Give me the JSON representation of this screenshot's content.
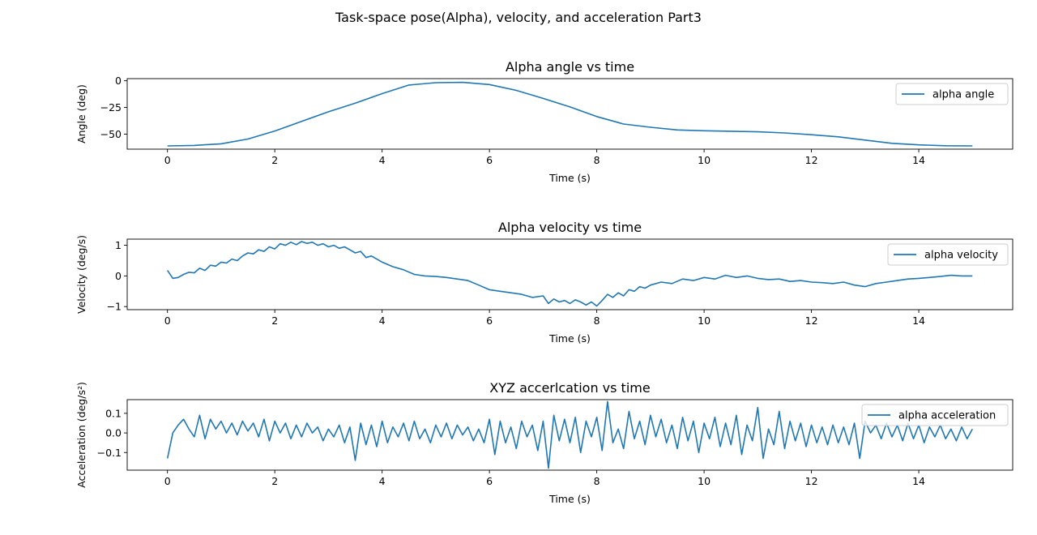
{
  "figure": {
    "title": "Task-space pose(Alpha), velocity, and acceleration Part3"
  },
  "chart_data": [
    {
      "type": "line",
      "title": "Alpha angle vs time",
      "xlabel": "Time (s)",
      "ylabel": "Angle (deg)",
      "xlim": [
        -0.75,
        15.75
      ],
      "ylim": [
        -64,
        2
      ],
      "xticks": [
        0,
        2,
        4,
        6,
        8,
        10,
        12,
        14
      ],
      "xtick_labels": [
        "0",
        "2",
        "4",
        "6",
        "8",
        "10",
        "12",
        "14"
      ],
      "yticks": [
        0,
        -25,
        -50
      ],
      "ytick_labels": [
        "0",
        "−25",
        "−50"
      ],
      "legend": "top-right",
      "grid": false,
      "series": [
        {
          "name": "alpha angle",
          "color": "#1f77b4",
          "x": [
            0,
            0.5,
            1,
            1.5,
            2,
            2.5,
            3,
            3.5,
            4,
            4.5,
            5,
            5.5,
            6,
            6.5,
            7,
            7.5,
            8,
            8.5,
            9,
            9.5,
            10,
            10.5,
            11,
            11.5,
            12,
            12.5,
            13,
            13.5,
            14,
            14.5,
            15
          ],
          "y": [
            -61,
            -60.5,
            -59,
            -54.5,
            -47,
            -38,
            -29,
            -21,
            -12,
            -4,
            -1.8,
            -1.5,
            -3.5,
            -9,
            -16.5,
            -24.5,
            -33.5,
            -40.5,
            -43.5,
            -46,
            -46.8,
            -47.2,
            -47.8,
            -48.8,
            -50.5,
            -52.5,
            -55.5,
            -58.5,
            -60,
            -60.8,
            -61
          ]
        }
      ]
    },
    {
      "type": "line",
      "title": "Alpha velocity vs time",
      "xlabel": "Time (s)",
      "ylabel": "Velocity (deg/s)",
      "xlim": [
        -0.75,
        15.75
      ],
      "ylim": [
        -1.1,
        1.2
      ],
      "xticks": [
        0,
        2,
        4,
        6,
        8,
        10,
        12,
        14
      ],
      "xtick_labels": [
        "0",
        "2",
        "4",
        "6",
        "8",
        "10",
        "12",
        "14"
      ],
      "yticks": [
        1,
        0,
        -1
      ],
      "ytick_labels": [
        "1",
        "0",
        "−1"
      ],
      "legend": "top-right",
      "grid": false,
      "series": [
        {
          "name": "alpha velocity",
          "color": "#1f77b4",
          "x": [
            0,
            0.1,
            0.2,
            0.3,
            0.4,
            0.5,
            0.6,
            0.7,
            0.8,
            0.9,
            1.0,
            1.1,
            1.2,
            1.3,
            1.4,
            1.5,
            1.6,
            1.7,
            1.8,
            1.9,
            2.0,
            2.1,
            2.2,
            2.3,
            2.4,
            2.5,
            2.6,
            2.7,
            2.8,
            2.9,
            3.0,
            3.1,
            3.2,
            3.3,
            3.4,
            3.5,
            3.6,
            3.7,
            3.8,
            3.9,
            4.0,
            4.2,
            4.4,
            4.6,
            4.8,
            5.0,
            5.2,
            5.4,
            5.6,
            5.8,
            6.0,
            6.2,
            6.4,
            6.6,
            6.8,
            7.0,
            7.1,
            7.2,
            7.3,
            7.4,
            7.5,
            7.6,
            7.7,
            7.8,
            7.9,
            8.0,
            8.1,
            8.2,
            8.3,
            8.4,
            8.5,
            8.6,
            8.7,
            8.8,
            8.9,
            9.0,
            9.2,
            9.4,
            9.6,
            9.8,
            10.0,
            10.2,
            10.4,
            10.6,
            10.8,
            11.0,
            11.2,
            11.4,
            11.6,
            11.8,
            12.0,
            12.2,
            12.4,
            12.6,
            12.8,
            13.0,
            13.2,
            13.4,
            13.6,
            13.8,
            14.0,
            14.2,
            14.4,
            14.6,
            14.8,
            15.0
          ],
          "y": [
            0.18,
            -0.08,
            -0.05,
            0.05,
            0.12,
            0.1,
            0.25,
            0.18,
            0.35,
            0.32,
            0.45,
            0.42,
            0.55,
            0.5,
            0.65,
            0.75,
            0.72,
            0.85,
            0.8,
            0.95,
            0.88,
            1.05,
            1.0,
            1.1,
            1.02,
            1.12,
            1.06,
            1.1,
            1.0,
            1.05,
            0.95,
            1.0,
            0.9,
            0.95,
            0.85,
            0.75,
            0.8,
            0.6,
            0.65,
            0.55,
            0.45,
            0.3,
            0.2,
            0.05,
            0.0,
            -0.02,
            -0.05,
            -0.1,
            -0.15,
            -0.3,
            -0.45,
            -0.5,
            -0.55,
            -0.6,
            -0.7,
            -0.65,
            -0.9,
            -0.75,
            -0.85,
            -0.8,
            -0.9,
            -0.78,
            -0.85,
            -0.95,
            -0.85,
            -0.98,
            -0.8,
            -0.6,
            -0.7,
            -0.55,
            -0.65,
            -0.45,
            -0.5,
            -0.35,
            -0.4,
            -0.3,
            -0.2,
            -0.25,
            -0.1,
            -0.15,
            -0.05,
            -0.1,
            0.02,
            -0.05,
            0.0,
            -0.08,
            -0.12,
            -0.1,
            -0.18,
            -0.15,
            -0.2,
            -0.22,
            -0.25,
            -0.2,
            -0.3,
            -0.35,
            -0.25,
            -0.2,
            -0.15,
            -0.1,
            -0.08,
            -0.05,
            -0.02,
            0.02,
            0.0,
            0.0
          ]
        }
      ]
    },
    {
      "type": "line",
      "title": "XYZ accerlcation vs time",
      "xlabel": "Time (s)",
      "ylabel": "Acceleration (deg/s²)",
      "xlim": [
        -0.75,
        15.75
      ],
      "ylim": [
        -0.19,
        0.17
      ],
      "xticks": [
        0,
        2,
        4,
        6,
        8,
        10,
        12,
        14
      ],
      "xtick_labels": [
        "0",
        "2",
        "4",
        "6",
        "8",
        "10",
        "12",
        "14"
      ],
      "yticks": [
        0.1,
        0.0,
        -0.1
      ],
      "ytick_labels": [
        "0.1",
        "0.0",
        "−0.1"
      ],
      "legend": "top-right",
      "grid": false,
      "series": [
        {
          "name": "alpha acceleration",
          "color": "#1f77b4",
          "x": [
            0,
            0.1,
            0.2,
            0.3,
            0.4,
            0.5,
            0.6,
            0.7,
            0.8,
            0.9,
            1.0,
            1.1,
            1.2,
            1.3,
            1.4,
            1.5,
            1.6,
            1.7,
            1.8,
            1.9,
            2.0,
            2.1,
            2.2,
            2.3,
            2.4,
            2.5,
            2.6,
            2.7,
            2.8,
            2.9,
            3.0,
            3.1,
            3.2,
            3.3,
            3.4,
            3.5,
            3.6,
            3.7,
            3.8,
            3.9,
            4.0,
            4.1,
            4.2,
            4.3,
            4.4,
            4.5,
            4.6,
            4.7,
            4.8,
            4.9,
            5.0,
            5.1,
            5.2,
            5.3,
            5.4,
            5.5,
            5.6,
            5.7,
            5.8,
            5.9,
            6.0,
            6.1,
            6.2,
            6.3,
            6.4,
            6.5,
            6.6,
            6.7,
            6.8,
            6.9,
            7.0,
            7.1,
            7.2,
            7.3,
            7.4,
            7.5,
            7.6,
            7.7,
            7.8,
            7.9,
            8.0,
            8.1,
            8.2,
            8.3,
            8.4,
            8.5,
            8.6,
            8.7,
            8.8,
            8.9,
            9.0,
            9.1,
            9.2,
            9.3,
            9.4,
            9.5,
            9.6,
            9.7,
            9.8,
            9.9,
            10.0,
            10.1,
            10.2,
            10.3,
            10.4,
            10.5,
            10.6,
            10.7,
            10.8,
            10.9,
            11.0,
            11.1,
            11.2,
            11.3,
            11.4,
            11.5,
            11.6,
            11.7,
            11.8,
            11.9,
            12.0,
            12.1,
            12.2,
            12.3,
            12.4,
            12.5,
            12.6,
            12.7,
            12.8,
            12.9,
            13.0,
            13.1,
            13.2,
            13.3,
            13.4,
            13.5,
            13.6,
            13.7,
            13.8,
            13.9,
            14.0,
            14.1,
            14.2,
            14.3,
            14.4,
            14.5,
            14.6,
            14.7,
            14.8,
            14.9,
            15.0
          ],
          "y": [
            -0.13,
            0.0,
            0.04,
            0.07,
            0.02,
            -0.02,
            0.09,
            -0.03,
            0.07,
            0.02,
            0.06,
            0.0,
            0.05,
            -0.01,
            0.06,
            0.01,
            0.05,
            -0.02,
            0.07,
            -0.04,
            0.06,
            0.0,
            0.05,
            -0.03,
            0.04,
            -0.02,
            0.05,
            0.0,
            0.03,
            -0.04,
            0.02,
            -0.02,
            0.04,
            -0.05,
            0.03,
            -0.14,
            0.05,
            -0.06,
            0.04,
            -0.07,
            0.06,
            -0.05,
            0.03,
            -0.02,
            0.05,
            -0.04,
            0.06,
            -0.03,
            0.02,
            -0.05,
            0.04,
            -0.02,
            0.05,
            -0.03,
            0.04,
            -0.01,
            0.03,
            -0.04,
            0.02,
            -0.05,
            0.07,
            -0.11,
            0.06,
            -0.05,
            0.03,
            -0.08,
            0.06,
            -0.02,
            0.04,
            -0.09,
            0.06,
            -0.18,
            0.09,
            -0.04,
            0.07,
            -0.05,
            0.08,
            -0.1,
            0.06,
            -0.02,
            0.08,
            -0.09,
            0.16,
            -0.05,
            0.02,
            -0.08,
            0.11,
            -0.03,
            0.06,
            -0.06,
            0.09,
            -0.02,
            0.07,
            -0.05,
            0.04,
            -0.08,
            0.08,
            -0.04,
            0.06,
            -0.1,
            0.05,
            -0.03,
            0.08,
            -0.07,
            0.05,
            -0.06,
            0.09,
            -0.11,
            0.04,
            -0.04,
            0.13,
            -0.13,
            0.02,
            -0.06,
            0.11,
            -0.08,
            0.06,
            -0.04,
            0.05,
            -0.07,
            0.04,
            -0.05,
            0.03,
            -0.06,
            0.04,
            -0.05,
            0.03,
            -0.06,
            0.05,
            -0.13,
            0.06,
            0.0,
            0.04,
            -0.03,
            0.05,
            -0.02,
            0.04,
            -0.04,
            0.05,
            -0.03,
            0.04,
            -0.05,
            0.03,
            -0.02,
            0.04,
            -0.03,
            0.02,
            -0.04,
            0.03,
            -0.03,
            0.02
          ]
        }
      ]
    }
  ]
}
